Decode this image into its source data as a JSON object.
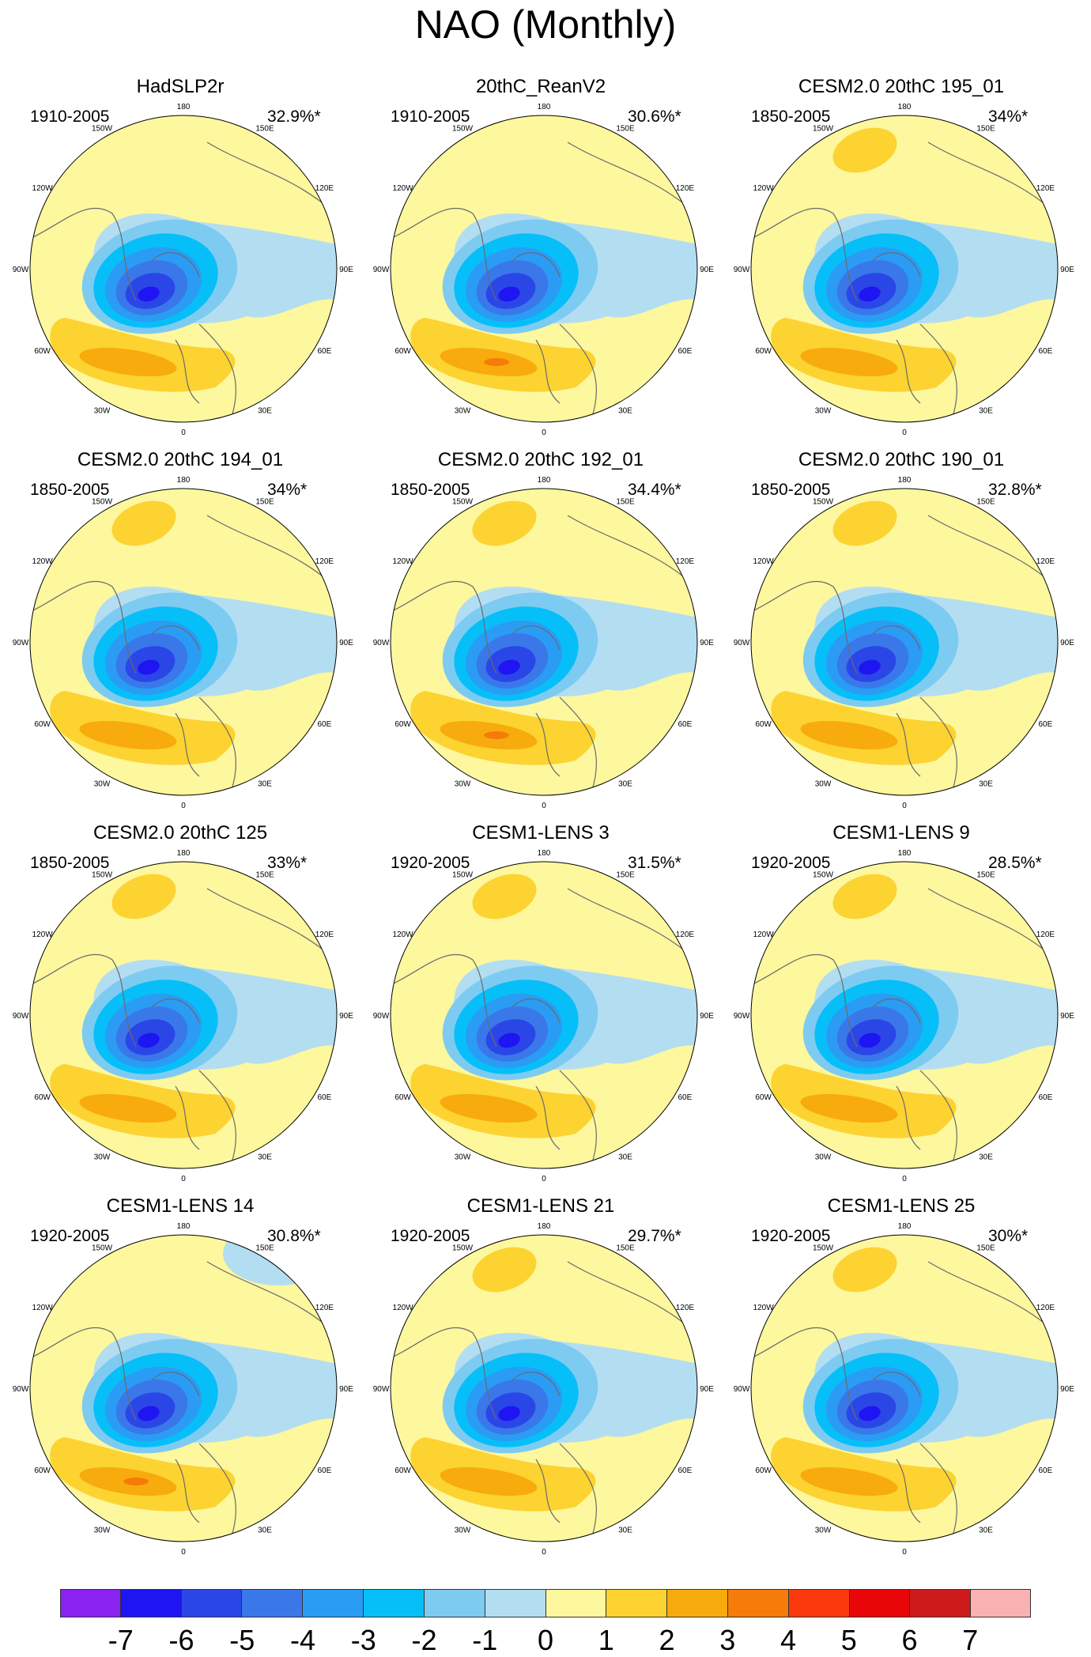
{
  "title": "NAO (Monthly)",
  "longitude_labels": [
    "180",
    "150E",
    "120E",
    "90E",
    "60E",
    "30E",
    "0",
    "30W",
    "60W",
    "90W",
    "120W",
    "150W"
  ],
  "panels": [
    {
      "name": "HadSLP2r",
      "period": "1910-2005",
      "variance": "32.9%*"
    },
    {
      "name": "20thC_ReanV2",
      "period": "1910-2005",
      "variance": "30.6%*"
    },
    {
      "name": "CESM2.0 20thC 195_01",
      "period": "1850-2005",
      "variance": "34%*"
    },
    {
      "name": "CESM2.0 20thC 194_01",
      "period": "1850-2005",
      "variance": "34%*"
    },
    {
      "name": "CESM2.0 20thC 192_01",
      "period": "1850-2005",
      "variance": "34.4%*"
    },
    {
      "name": "CESM2.0 20thC 190_01",
      "period": "1850-2005",
      "variance": "32.8%*"
    },
    {
      "name": "CESM2.0 20thC 125",
      "period": "1850-2005",
      "variance": "33%*"
    },
    {
      "name": "CESM1-LENS 3",
      "period": "1920-2005",
      "variance": "31.5%*"
    },
    {
      "name": "CESM1-LENS 9",
      "period": "1920-2005",
      "variance": "28.5%*"
    },
    {
      "name": "CESM1-LENS 14",
      "period": "1920-2005",
      "variance": "30.8%*"
    },
    {
      "name": "CESM1-LENS 21",
      "period": "1920-2005",
      "variance": "29.7%*"
    },
    {
      "name": "CESM1-LENS 25",
      "period": "1920-2005",
      "variance": "30%*"
    }
  ],
  "colorbar": {
    "labels": [
      "-7",
      "-6",
      "-5",
      "-4",
      "-3",
      "-2",
      "-1",
      "0",
      "1",
      "2",
      "3",
      "4",
      "5",
      "6",
      "7"
    ],
    "colors": [
      "#8a22f0",
      "#1e15f2",
      "#2b46e6",
      "#3a78ea",
      "#2a9cf4",
      "#06bff9",
      "#7ecbf1",
      "#b3def2",
      "#fdf79e",
      "#fcd331",
      "#f8ab0d",
      "#f67c0a",
      "#fa3a0c",
      "#e80608",
      "#cf1a1c",
      "#f9b1b1"
    ]
  },
  "palette": {
    "ocean_bg": "#fdf79e",
    "coast": "#6a6a6a"
  }
}
